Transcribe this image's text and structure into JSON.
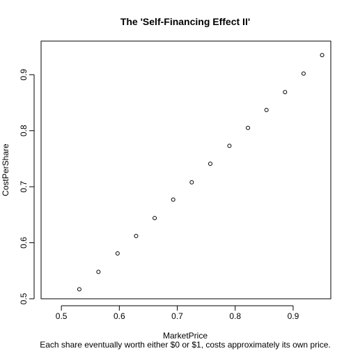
{
  "chart_data": {
    "type": "scatter",
    "title": "The 'Self-Financing Effect II'",
    "xlabel": "MarketPrice",
    "ylabel": "CostPerShare",
    "subtitle": "Each share eventually worth either $0 or $1, costs approximately its own price.",
    "xlim": [
      0.465,
      0.965
    ],
    "ylim": [
      0.5,
      0.96
    ],
    "xticks": [
      0.5,
      0.6,
      0.7,
      0.8,
      0.9
    ],
    "yticks": [
      0.5,
      0.6,
      0.7,
      0.8,
      0.9
    ],
    "grid": false,
    "series": [
      {
        "x": [
          0.531,
          0.564,
          0.597,
          0.629,
          0.661,
          0.693,
          0.725,
          0.757,
          0.79,
          0.822,
          0.854,
          0.886,
          0.918,
          0.95
        ],
        "y": [
          0.517,
          0.548,
          0.581,
          0.612,
          0.644,
          0.677,
          0.708,
          0.741,
          0.773,
          0.805,
          0.837,
          0.869,
          0.902,
          0.935
        ]
      }
    ]
  }
}
